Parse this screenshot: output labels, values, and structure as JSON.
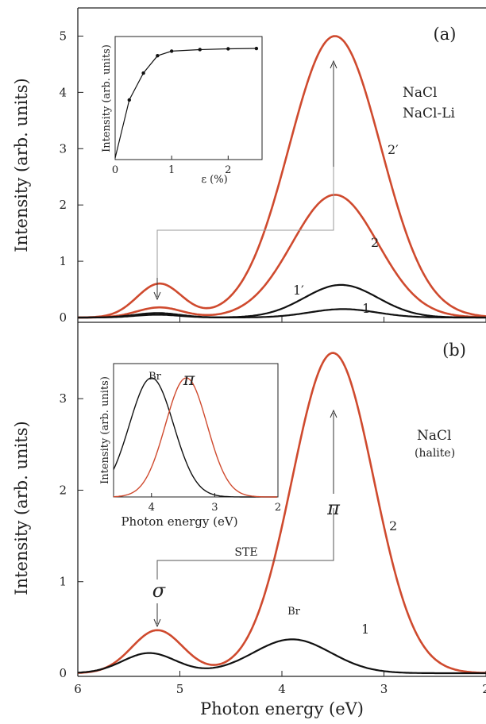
{
  "chart_data": [
    {
      "panel": "(a)",
      "type": "line",
      "xlabel": "",
      "ylabel": "Intensity (arb. units)",
      "xlim": [
        6,
        2
      ],
      "ylim": [
        0,
        5.5
      ],
      "yticks": [
        0,
        1,
        2,
        3,
        4,
        5
      ],
      "x_reversed": true,
      "sample_labels": [
        "NaCl",
        "NaCl-Li"
      ],
      "colors": {
        "red": "#cf4a2e",
        "black": "#111111"
      },
      "series": [
        {
          "name": "2′",
          "color": "red",
          "peaks": [
            [
              5.2,
              0.6,
              0.22
            ],
            [
              3.48,
              5.0,
              0.45
            ]
          ]
        },
        {
          "name": "2",
          "color": "red",
          "peaks": [
            [
              5.2,
              0.18,
              0.22
            ],
            [
              3.48,
              2.18,
              0.42
            ]
          ]
        },
        {
          "name": "1′",
          "color": "black",
          "peaks": [
            [
              5.22,
              0.08,
              0.22
            ],
            [
              3.42,
              0.58,
              0.36
            ]
          ]
        },
        {
          "name": "1",
          "color": "black",
          "peaks": [
            [
              5.22,
              0.05,
              0.22
            ],
            [
              3.4,
              0.15,
              0.33
            ]
          ]
        }
      ],
      "inset": {
        "type": "line",
        "xlabel": "ε (%)",
        "ylabel": "Intensity (arb. units)",
        "xlim": [
          0,
          2.6
        ],
        "xticks": [
          0,
          1,
          2
        ],
        "points": [
          [
            0.25,
            3.55
          ],
          [
            0.5,
            4.25
          ],
          [
            0.75,
            4.7
          ],
          [
            1.0,
            4.82
          ],
          [
            1.5,
            4.86
          ],
          [
            2.0,
            4.88
          ],
          [
            2.5,
            4.89
          ]
        ],
        "ylim": [
          2.0,
          5.2
        ]
      }
    },
    {
      "panel": "(b)",
      "type": "line",
      "xlabel": "Photon energy (eV)",
      "ylabel": "Intensity (arb. units)",
      "xlim": [
        6,
        2
      ],
      "ylim": [
        0,
        3.8
      ],
      "xticks": [
        6,
        5,
        4,
        3,
        2
      ],
      "yticks": [
        0,
        1,
        2,
        3
      ],
      "x_reversed": true,
      "sample_labels": [
        "NaCl",
        "(halite)"
      ],
      "annotations": {
        "ste": "STE",
        "sigma": "σ",
        "pi": "π",
        "br": "Br"
      },
      "series": [
        {
          "name": "2",
          "color": "red",
          "peaks": [
            [
              5.22,
              0.47,
              0.25
            ],
            [
              3.5,
              3.5,
              0.4
            ]
          ]
        },
        {
          "name": "1",
          "color": "black",
          "peaks": [
            [
              5.3,
              0.22,
              0.26
            ],
            [
              3.9,
              0.37,
              0.38
            ]
          ]
        }
      ],
      "inset": {
        "type": "line",
        "xlabel": "Photon energy (eV)",
        "ylabel": "Intensity (arb. units)",
        "xlim": [
          4.6,
          2
        ],
        "xticks": [
          4,
          3,
          2
        ],
        "x_reversed": true,
        "series": [
          {
            "name": "Br",
            "color": "black",
            "peaks": [
              [
                4.0,
                1.0,
                0.35
              ]
            ]
          },
          {
            "name": "π",
            "color": "red",
            "peaks": [
              [
                3.45,
                1.0,
                0.33
              ]
            ]
          }
        ],
        "ylim": [
          0,
          1.12
        ]
      }
    }
  ],
  "labels": {
    "panel_a": "(a)",
    "panel_b": "(b)",
    "ytitle": "Intensity (arb. units)",
    "xtitle": "Photon energy (eV)"
  }
}
